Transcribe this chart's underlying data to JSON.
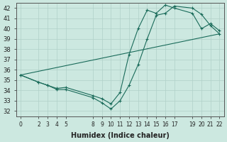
{
  "xlabel": "Humidex (Indice chaleur)",
  "ylabel": "",
  "bg_color": "#cce8e0",
  "line_color": "#1a6b5a",
  "grid_color": "#b0d0c8",
  "ylim": [
    31.5,
    42.5
  ],
  "xlim": [
    -0.5,
    22.5
  ],
  "yticks": [
    32,
    33,
    34,
    35,
    36,
    37,
    38,
    39,
    40,
    41,
    42
  ],
  "xticks": [
    0,
    2,
    3,
    4,
    5,
    8,
    9,
    10,
    11,
    12,
    13,
    14,
    15,
    16,
    17,
    19,
    20,
    21,
    22
  ],
  "line1_x": [
    0,
    2,
    3,
    4,
    5,
    8,
    9,
    10,
    11,
    12,
    13,
    14,
    15,
    16,
    17,
    19,
    20,
    21,
    22
  ],
  "line1_y": [
    35.5,
    34.8,
    34.5,
    34.1,
    34.1,
    33.3,
    32.8,
    32.2,
    33.0,
    34.5,
    36.5,
    39.0,
    41.3,
    41.5,
    42.2,
    42.0,
    41.4,
    40.3,
    39.5
  ],
  "line2_x": [
    0,
    2,
    3,
    4,
    5,
    8,
    9,
    10,
    11,
    12,
    13,
    14,
    15,
    16,
    17,
    19,
    20,
    21,
    22
  ],
  "line2_y": [
    35.5,
    34.8,
    34.5,
    34.2,
    34.3,
    33.5,
    33.2,
    32.7,
    33.8,
    37.5,
    40.0,
    41.8,
    41.5,
    42.3,
    42.0,
    41.5,
    40.0,
    40.5,
    39.8
  ],
  "line3_x": [
    0,
    22
  ],
  "line3_y": [
    35.5,
    39.5
  ]
}
